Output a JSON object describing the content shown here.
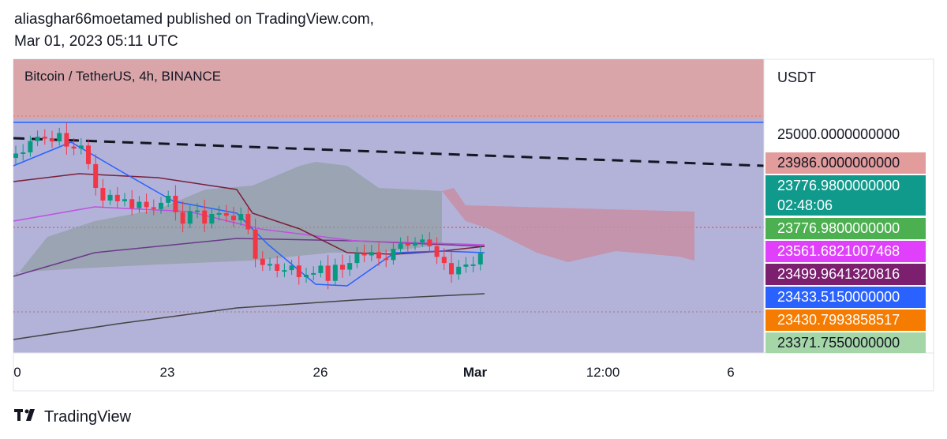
{
  "header": {
    "author_line": "aliasghar66moetamed published on TradingView.com,",
    "date": "Mar 01, 2023 05:11 UTC"
  },
  "chart": {
    "symbol": "Bitcoin / TetherUS, 4h, BINANCE",
    "currency": "USDT",
    "axis_price": "25000.0000000000",
    "price_tags": [
      {
        "price": "23986.0000000000"
      },
      {
        "price": "23776.9800000000",
        "countdown": "02:48:06"
      },
      {
        "price": "23776.9800000000"
      },
      {
        "price": "23561.6821007468"
      },
      {
        "price": "23499.9641320816"
      },
      {
        "price": "23433.5150000000"
      },
      {
        "price": "23430.7993858517"
      },
      {
        "price": "23371.7550000000"
      }
    ],
    "x_labels": [
      "0",
      "23",
      "26",
      "Mar",
      "12:00",
      "6"
    ]
  },
  "footer": {
    "brand": "TradingView"
  }
}
